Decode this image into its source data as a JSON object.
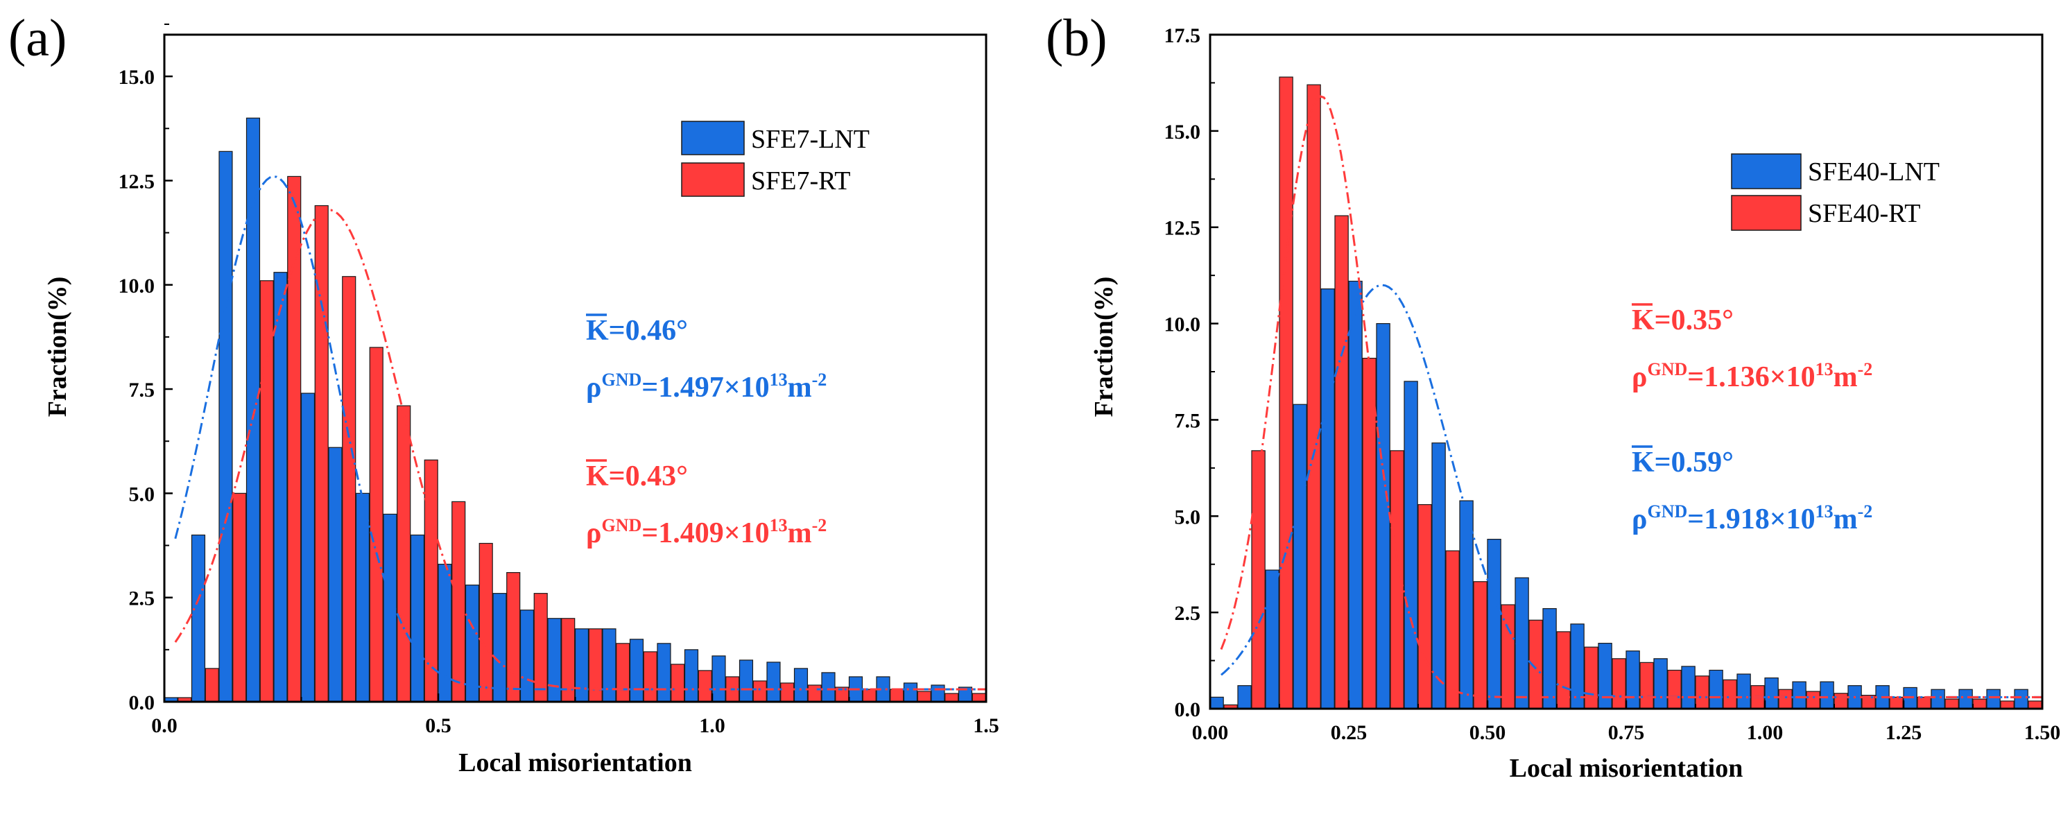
{
  "figure": {
    "panels": [
      {
        "label": "(a)"
      },
      {
        "label": "(b)"
      }
    ]
  },
  "chart_data": [
    {
      "type": "bar",
      "panel_label": "(a)",
      "xlabel": "Local misorientation",
      "ylabel": "Fraction(%)",
      "xlim": [
        0,
        1.5
      ],
      "ylim": [
        0,
        16
      ],
      "xticks": [
        0.0,
        0.5,
        1.0,
        1.5
      ],
      "xtick_labels": [
        "0.0",
        "0.5",
        "1.0",
        "1.5"
      ],
      "yticks": [
        0,
        2.5,
        5,
        7.5,
        10,
        12.5,
        15
      ],
      "ytick_labels": [
        "0.0",
        "2.5",
        "5.0",
        "7.5",
        "10.0",
        "12.5",
        "15.0"
      ],
      "bin_width": 0.05,
      "x": [
        0.025,
        0.075,
        0.125,
        0.175,
        0.225,
        0.275,
        0.325,
        0.375,
        0.425,
        0.475,
        0.525,
        0.575,
        0.625,
        0.675,
        0.725,
        0.775,
        0.825,
        0.875,
        0.925,
        0.975,
        1.025,
        1.075,
        1.125,
        1.175,
        1.225,
        1.275,
        1.325,
        1.375,
        1.425,
        1.475
      ],
      "series": [
        {
          "name": "SFE7-LNT",
          "color": "#1a6fe0",
          "values": [
            0.1,
            4.0,
            13.2,
            14.0,
            10.3,
            7.4,
            6.1,
            5.0,
            4.5,
            4.0,
            3.3,
            2.8,
            2.6,
            2.2,
            2.0,
            1.75,
            1.75,
            1.5,
            1.4,
            1.25,
            1.1,
            1.0,
            0.95,
            0.8,
            0.7,
            0.6,
            0.6,
            0.45,
            0.4,
            0.35
          ]
        },
        {
          "name": "SFE7-RT",
          "color": "#ff3b3b",
          "values": [
            0.1,
            0.8,
            5.0,
            10.1,
            12.6,
            11.9,
            10.2,
            8.5,
            7.1,
            5.8,
            4.8,
            3.8,
            3.1,
            2.6,
            2.0,
            1.75,
            1.4,
            1.2,
            0.9,
            0.75,
            0.6,
            0.5,
            0.45,
            0.4,
            0.35,
            0.3,
            0.3,
            0.25,
            0.2,
            0.2
          ]
        }
      ],
      "fits": [
        {
          "series": "SFE7-LNT",
          "color": "#1a6fe0",
          "style": "dash-dot",
          "amplitude": 12.3,
          "center": 0.2,
          "sigma": 0.115,
          "baseline": 0.3
        },
        {
          "series": "SFE7-RT",
          "color": "#ff3b3b",
          "style": "dash-dot",
          "amplitude": 11.5,
          "center": 0.3,
          "sigma": 0.13,
          "baseline": 0.3
        }
      ],
      "legend": {
        "position": "top-right",
        "entries": [
          "SFE7-LNT",
          "SFE7-RT"
        ]
      },
      "annotations": [
        {
          "color": "#1a6fe0",
          "k_text": "K",
          "k_value": "=0.46°",
          "rho_text": "ρ",
          "rho_sup": "GND",
          "rho_value": "=1.497×10",
          "rho_exp": "13",
          "rho_unit": "m",
          "rho_unit_exp": "-2"
        },
        {
          "color": "#ff3b3b",
          "k_text": "K",
          "k_value": "=0.43°",
          "rho_text": "ρ",
          "rho_sup": "GND",
          "rho_value": "=1.409×10",
          "rho_exp": "13",
          "rho_unit": "m",
          "rho_unit_exp": "-2"
        }
      ]
    },
    {
      "type": "bar",
      "panel_label": "(b)",
      "xlabel": "Local misorientation",
      "ylabel": "Fraction(%)",
      "xlim": [
        0,
        1.5
      ],
      "ylim": [
        0,
        17.5
      ],
      "xticks": [
        0.0,
        0.25,
        0.5,
        0.75,
        1.0,
        1.25,
        1.5
      ],
      "xtick_labels": [
        "0.00",
        "0.25",
        "0.50",
        "0.75",
        "1.00",
        "1.25",
        "1.50"
      ],
      "yticks": [
        0,
        2.5,
        5,
        7.5,
        10,
        12.5,
        15,
        17.5
      ],
      "ytick_labels": [
        "0.0",
        "2.5",
        "5.0",
        "7.5",
        "10.0",
        "12.5",
        "15.0",
        "17.5"
      ],
      "bin_width": 0.05,
      "x": [
        0.025,
        0.075,
        0.125,
        0.175,
        0.225,
        0.275,
        0.325,
        0.375,
        0.425,
        0.475,
        0.525,
        0.575,
        0.625,
        0.675,
        0.725,
        0.775,
        0.825,
        0.875,
        0.925,
        0.975,
        1.025,
        1.075,
        1.125,
        1.175,
        1.225,
        1.275,
        1.325,
        1.375,
        1.425,
        1.475
      ],
      "series": [
        {
          "name": "SFE40-LNT",
          "color": "#1a6fe0",
          "values": [
            0.3,
            0.6,
            3.6,
            7.9,
            10.9,
            11.1,
            10.0,
            8.5,
            6.9,
            5.4,
            4.4,
            3.4,
            2.6,
            2.2,
            1.7,
            1.5,
            1.3,
            1.1,
            1.0,
            0.9,
            0.8,
            0.7,
            0.7,
            0.6,
            0.6,
            0.55,
            0.5,
            0.5,
            0.5,
            0.5
          ]
        },
        {
          "name": "SFE40-RT",
          "color": "#ff3b3b",
          "values": [
            0.1,
            6.7,
            16.4,
            16.2,
            12.8,
            9.1,
            6.7,
            5.3,
            4.1,
            3.3,
            2.7,
            2.3,
            2.0,
            1.6,
            1.3,
            1.2,
            1.0,
            0.85,
            0.75,
            0.6,
            0.5,
            0.45,
            0.4,
            0.35,
            0.3,
            0.3,
            0.25,
            0.25,
            0.2,
            0.2
          ]
        }
      ],
      "fits": [
        {
          "series": "SFE40-LNT",
          "color": "#1a6fe0",
          "style": "dash-dot",
          "amplitude": 10.7,
          "center": 0.31,
          "sigma": 0.12,
          "baseline": 0.3
        },
        {
          "series": "SFE40-RT",
          "color": "#ff3b3b",
          "style": "dash-dot",
          "amplitude": 15.6,
          "center": 0.2,
          "sigma": 0.08,
          "baseline": 0.3
        }
      ],
      "legend": {
        "position": "top-right",
        "entries": [
          "SFE40-LNT",
          "SFE40-RT"
        ]
      },
      "annotations": [
        {
          "color": "#ff3b3b",
          "k_text": "K",
          "k_value": "=0.35°",
          "rho_text": "ρ",
          "rho_sup": "GND",
          "rho_value": "=1.136×10",
          "rho_exp": "13",
          "rho_unit": "m",
          "rho_unit_exp": "-2"
        },
        {
          "color": "#1a6fe0",
          "k_text": "K",
          "k_value": "=0.59°",
          "rho_text": "ρ",
          "rho_sup": "GND",
          "rho_value": "=1.918×10",
          "rho_exp": "13",
          "rho_unit": "m",
          "rho_unit_exp": "-2"
        }
      ]
    }
  ]
}
